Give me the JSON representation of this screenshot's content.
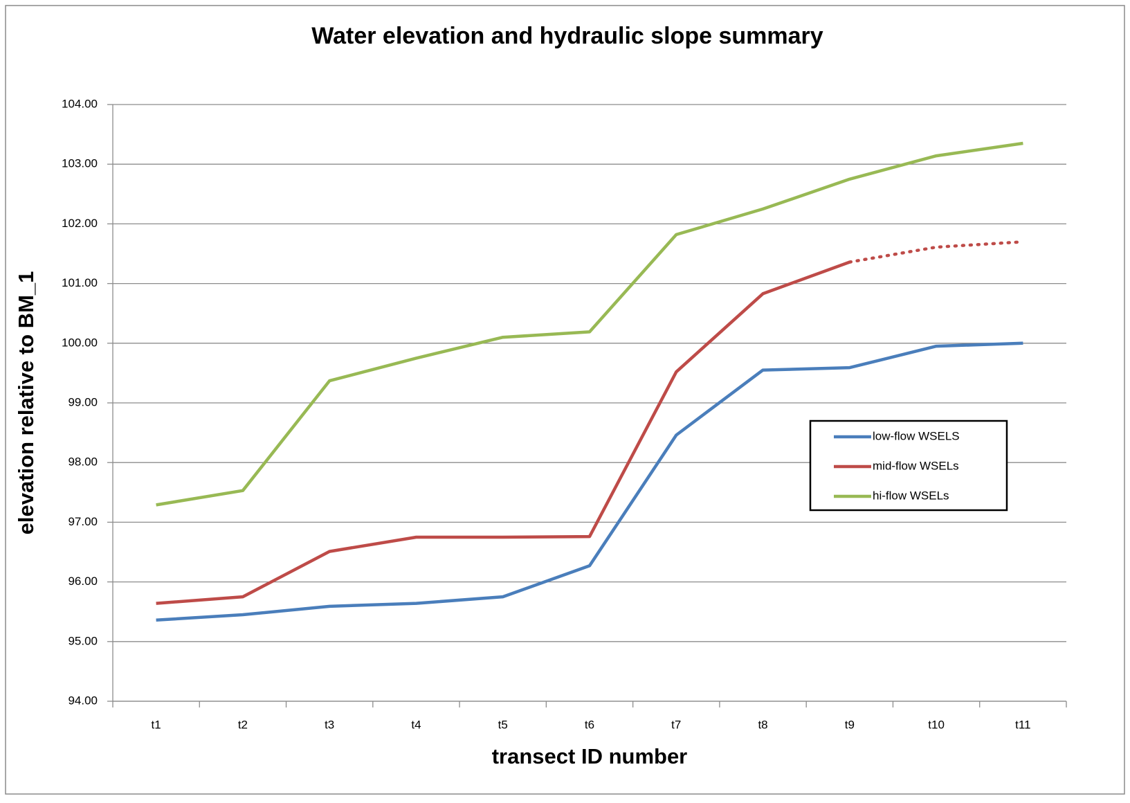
{
  "chart_data": {
    "type": "line",
    "title": "Water elevation and hydraulic slope summary",
    "x_label": "transect ID number",
    "y_label": "elevation relative to BM_1",
    "categories": [
      "t1",
      "t2",
      "t3",
      "t4",
      "t5",
      "t6",
      "t7",
      "t8",
      "t9",
      "t10",
      "t11"
    ],
    "series": [
      {
        "name": "low-flow WSELS",
        "color": "#4a7ebb",
        "values": [
          95.36,
          95.45,
          95.59,
          95.64,
          95.75,
          96.27,
          98.46,
          99.55,
          99.59,
          99.95,
          100.0
        ]
      },
      {
        "name": "mid-flow WSELs",
        "color": "#be4b48",
        "dotted_from": "t9",
        "values": [
          95.64,
          95.75,
          96.51,
          96.75,
          96.75,
          96.76,
          99.52,
          100.83,
          101.36,
          101.61,
          101.7
        ]
      },
      {
        "name": "hi-flow WSELs",
        "color": "#98b954",
        "values": [
          97.29,
          97.53,
          99.37,
          99.75,
          100.1,
          100.19,
          101.82,
          102.25,
          102.75,
          103.14,
          103.35
        ]
      }
    ],
    "ylim": [
      94,
      104
    ],
    "yticks": [
      {
        "value": 94,
        "label": "94.00"
      },
      {
        "value": 95,
        "label": "95.00"
      },
      {
        "value": 96,
        "label": "96.00"
      },
      {
        "value": 97,
        "label": "97.00"
      },
      {
        "value": 98,
        "label": "98.00"
      },
      {
        "value": 99,
        "label": "99.00"
      },
      {
        "value": 100,
        "label": "100.00"
      },
      {
        "value": 101,
        "label": "101.00"
      },
      {
        "value": 102,
        "label": "102.00"
      },
      {
        "value": 103,
        "label": "103.00"
      },
      {
        "value": 104,
        "label": "104.00"
      }
    ],
    "grid": true,
    "legend": "right"
  }
}
